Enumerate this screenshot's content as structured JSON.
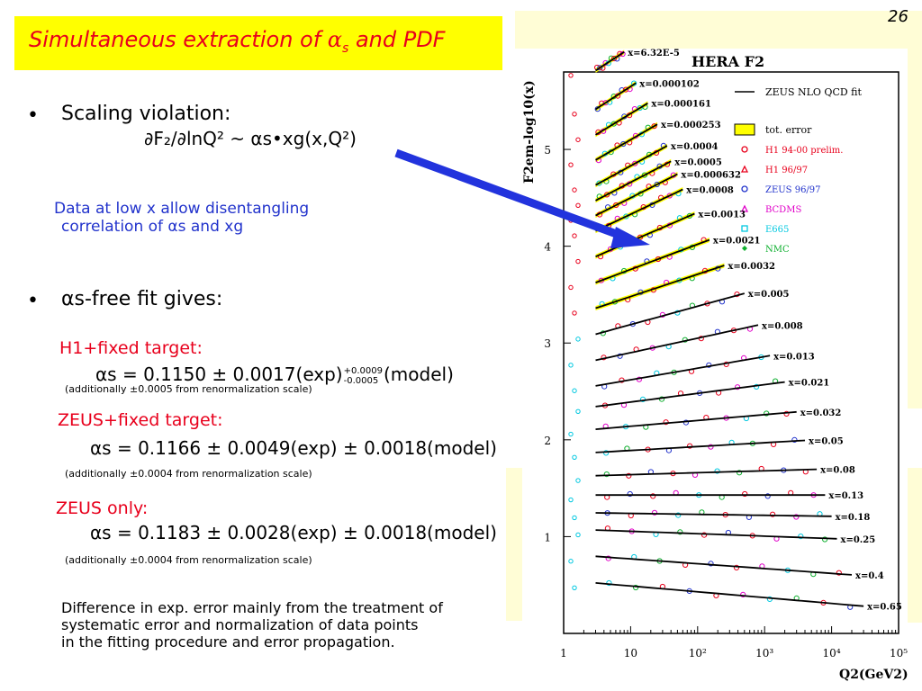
{
  "slide": {
    "number": "26",
    "title_prefix": "Simultaneous extraction of ",
    "title_alpha": "α",
    "title_sub": "s",
    "title_suffix": " and PDF"
  },
  "bullets": {
    "bullet_char": "•",
    "scaling_label": "Scaling violation:",
    "scaling_formula": "∂F₂/∂lnQ² ~ αs•xg(x,Q²)",
    "lowx_line1": "Data at low x allow disentangling",
    "lowx_line2": "correlation of αs and xg",
    "free_fit": "αs-free fit gives:"
  },
  "results": {
    "h1_label": "H1+fixed target:",
    "h1_value": "αs = 0.1150 ± 0.0017(exp)",
    "h1_up": "+0.0009",
    "h1_down": "-0.0005",
    "h1_model": "(model)",
    "h1_note": "(additionally ±0.0005 from renormalization scale)",
    "zeusft_label": "ZEUS+fixed target:",
    "zeusft_value": "αs = 0.1166 ± 0.0049(exp) ± 0.0018(model)",
    "zeusft_note": "(additionally ±0.0004 from renormalization scale)",
    "zeus_label": "ZEUS only:",
    "zeus_value": "αs = 0.1183 ± 0.0028(exp) ± 0.0018(model)",
    "zeus_note": "(additionally ±0.0004 from renormalization scale)"
  },
  "footer": {
    "line1": "Difference in exp. error mainly from the treatment of",
    "line2": "systematic error and normalization of data points",
    "line3": "in the fitting procedure and error propagation."
  },
  "chart_data": {
    "type": "scatter",
    "title": "HERA F2",
    "ylabel": "F2em-log10(x)",
    "xlabel": "Q2(GeV2)",
    "xscale": "log",
    "xlim": [
      1,
      100000
    ],
    "ylim": [
      0,
      5.8
    ],
    "yticks": [
      "1",
      "2",
      "3",
      "4",
      "5"
    ],
    "xticks": [
      "1",
      "10",
      "10²",
      "10³",
      "10⁴",
      "10⁵"
    ],
    "legend": [
      {
        "label": "ZEUS NLO QCD fit",
        "color": "#000000",
        "marker": "line"
      },
      {
        "label": "tot. error",
        "color": "#ffff00",
        "marker": "band"
      },
      {
        "label": "H1 94-00 prelim.",
        "color": "#e8001c",
        "marker": "circle"
      },
      {
        "label": "H1 96/97",
        "color": "#e8001c",
        "marker": "triangle"
      },
      {
        "label": "ZEUS 96/97",
        "color": "#2233cc",
        "marker": "circle"
      },
      {
        "label": "BCDMS",
        "color": "#e000c8",
        "marker": "triangle"
      },
      {
        "label": "E665",
        "color": "#00c8e0",
        "marker": "square"
      },
      {
        "label": "NMC",
        "color": "#10b030",
        "marker": "diamond"
      }
    ],
    "series": [
      {
        "x_label": "x=6.32E-5",
        "y_at_Q2_1": 5.6,
        "slope": 0.45,
        "qmin": 3,
        "qmax": 8
      },
      {
        "x_label": "x=0.000102",
        "y_at_Q2_1": 5.2,
        "slope": 0.45,
        "qmin": 3,
        "qmax": 12
      },
      {
        "x_label": "x=0.000161",
        "y_at_Q2_1": 4.95,
        "slope": 0.42,
        "qmin": 3,
        "qmax": 18
      },
      {
        "x_label": "x=0.000253",
        "y_at_Q2_1": 4.7,
        "slope": 0.4,
        "qmin": 3,
        "qmax": 25
      },
      {
        "x_label": "x=0.0004",
        "y_at_Q2_1": 4.45,
        "slope": 0.38,
        "qmin": 3,
        "qmax": 35
      },
      {
        "x_label": "x=0.0005",
        "y_at_Q2_1": 4.3,
        "slope": 0.36,
        "qmin": 3,
        "qmax": 40
      },
      {
        "x_label": "x=0.000632",
        "y_at_Q2_1": 4.15,
        "slope": 0.35,
        "qmin": 3,
        "qmax": 50
      },
      {
        "x_label": "x=0.0008",
        "y_at_Q2_1": 4.0,
        "slope": 0.33,
        "qmin": 3,
        "qmax": 60
      },
      {
        "x_label": "x=0.0013",
        "y_at_Q2_1": 3.75,
        "slope": 0.3,
        "qmin": 3,
        "qmax": 90
      },
      {
        "x_label": "x=0.0021",
        "y_at_Q2_1": 3.5,
        "slope": 0.26,
        "qmin": 3,
        "qmax": 150
      },
      {
        "x_label": "x=0.0032",
        "y_at_Q2_1": 3.25,
        "slope": 0.23,
        "qmin": 3,
        "qmax": 250
      },
      {
        "x_label": "x=0.005",
        "y_at_Q2_1": 3.0,
        "slope": 0.19,
        "qmin": 3,
        "qmax": 500
      },
      {
        "x_label": "x=0.008",
        "y_at_Q2_1": 2.75,
        "slope": 0.15,
        "qmin": 3,
        "qmax": 800
      },
      {
        "x_label": "x=0.013",
        "y_at_Q2_1": 2.5,
        "slope": 0.12,
        "qmin": 3,
        "qmax": 1200
      },
      {
        "x_label": "x=0.021",
        "y_at_Q2_1": 2.3,
        "slope": 0.09,
        "qmin": 3,
        "qmax": 2000
      },
      {
        "x_label": "x=0.032",
        "y_at_Q2_1": 2.08,
        "slope": 0.06,
        "qmin": 3,
        "qmax": 3000
      },
      {
        "x_label": "x=0.05",
        "y_at_Q2_1": 1.85,
        "slope": 0.04,
        "qmin": 3,
        "qmax": 4000
      },
      {
        "x_label": "x=0.08",
        "y_at_Q2_1": 1.62,
        "slope": 0.02,
        "qmin": 3,
        "qmax": 6000
      },
      {
        "x_label": "x=0.13",
        "y_at_Q2_1": 1.43,
        "slope": 0.0,
        "qmin": 3,
        "qmax": 8000
      },
      {
        "x_label": "x=0.18",
        "y_at_Q2_1": 1.25,
        "slope": -0.01,
        "qmin": 3,
        "qmax": 10000
      },
      {
        "x_label": "x=0.25",
        "y_at_Q2_1": 1.08,
        "slope": -0.025,
        "qmin": 3,
        "qmax": 12000
      },
      {
        "x_label": "x=0.4",
        "y_at_Q2_1": 0.82,
        "slope": -0.05,
        "qmin": 3,
        "qmax": 20000
      },
      {
        "x_label": "x=0.65",
        "y_at_Q2_1": 0.55,
        "slope": -0.06,
        "qmin": 3,
        "qmax": 30000
      }
    ]
  }
}
